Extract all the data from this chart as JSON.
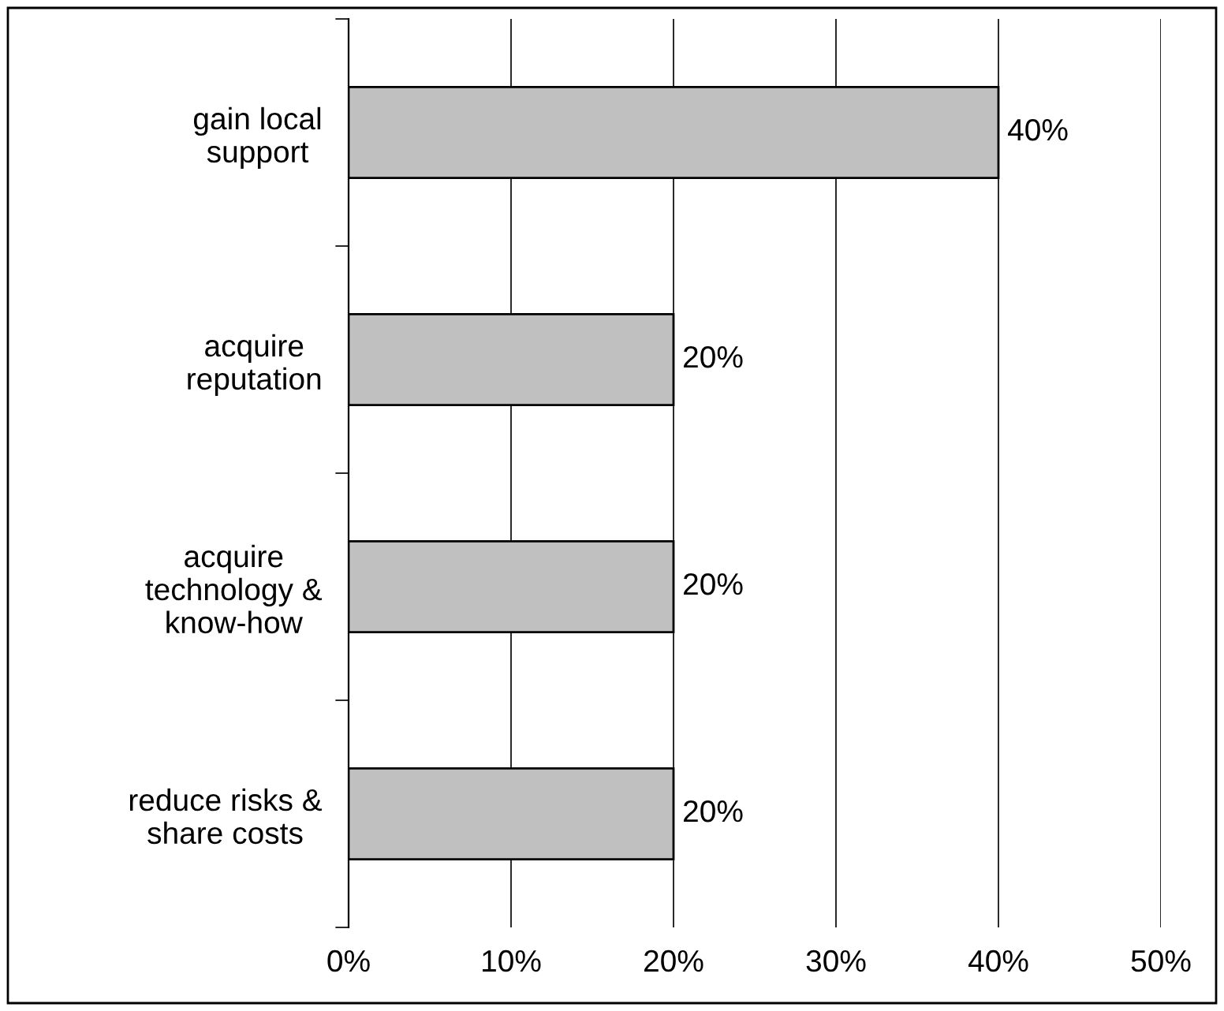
{
  "chart_data": {
    "type": "bar",
    "orientation": "horizontal",
    "categories": [
      "gain local\nsupport",
      "acquire\nreputation",
      "acquire\ntechnology &\nknow-how",
      "reduce risks &\nshare costs"
    ],
    "values": [
      40,
      20,
      20,
      20
    ],
    "color": "#c0c0c0",
    "value_labels": [
      "40%",
      "20%",
      "20%",
      "20%"
    ],
    "xlim": [
      0,
      50
    ],
    "xticks": [
      {
        "value": 0,
        "label": "0%"
      },
      {
        "value": 10,
        "label": "10%"
      },
      {
        "value": 20,
        "label": "20%"
      },
      {
        "value": 30,
        "label": "30%"
      },
      {
        "value": 40,
        "label": "40%"
      },
      {
        "value": 50,
        "label": "50%"
      }
    ],
    "grid": "x",
    "legend": false
  }
}
